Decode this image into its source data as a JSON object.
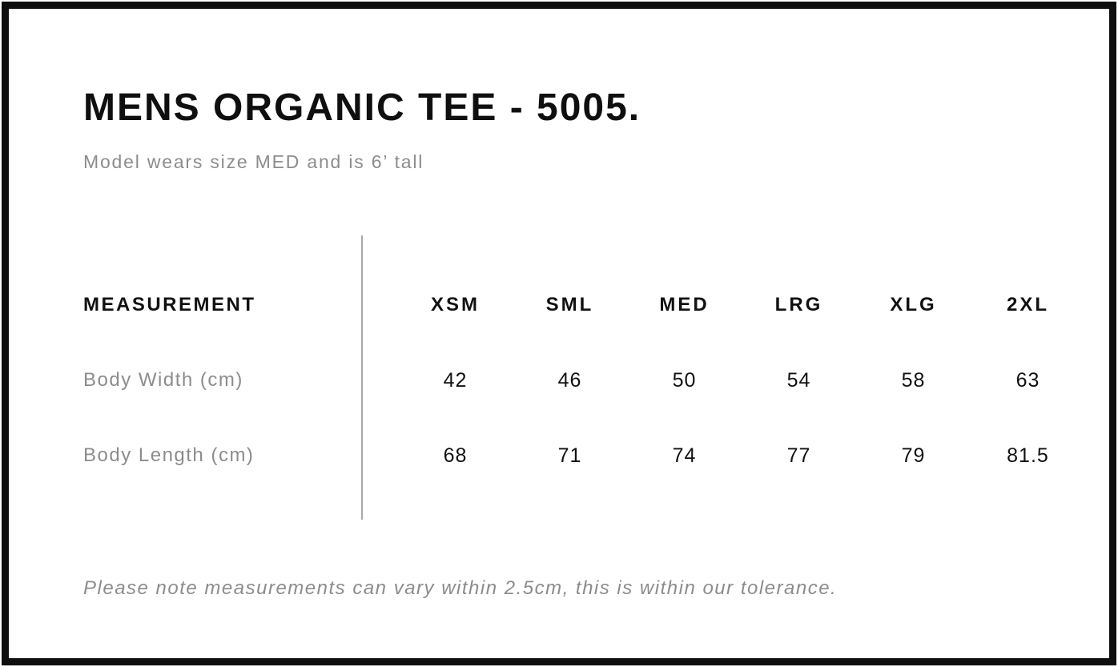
{
  "page": {
    "title": "MENS ORGANIC TEE - 5005.",
    "subtitle": "Model wears size MED and is 6’ tall",
    "tolerance_note": "Please note measurements can vary within 2.5cm, this is within our tolerance."
  },
  "size_chart": {
    "measurement_header": "MEASUREMENT",
    "sizes": [
      "XSM",
      "SML",
      "MED",
      "LRG",
      "XLG",
      "2XL"
    ],
    "rows": [
      {
        "label": "Body Width (cm)",
        "values": [
          "42",
          "46",
          "50",
          "54",
          "58",
          "63"
        ]
      },
      {
        "label": "Body Length (cm)",
        "values": [
          "68",
          "71",
          "74",
          "77",
          "79",
          "81.5"
        ]
      }
    ]
  },
  "colors": {
    "frame_border": "#0f0f0f",
    "heading_text": "#0f0f0f",
    "muted_text": "#8c8c8c",
    "divider_line": "#a9a9a9",
    "background": "#ffffff"
  }
}
